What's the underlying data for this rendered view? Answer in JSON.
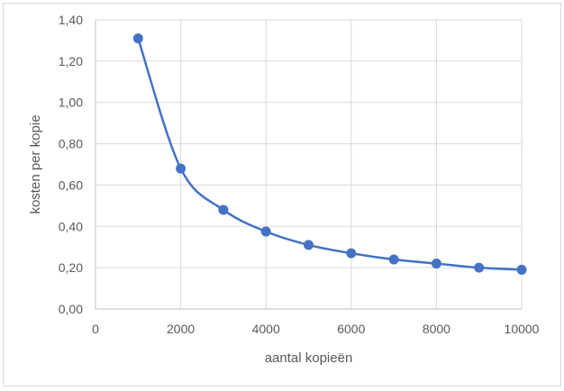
{
  "chart_data": {
    "type": "line",
    "title": "",
    "xlabel": "aantal kopieën",
    "ylabel": "kosten per kopie",
    "xlim": [
      0,
      10000
    ],
    "ylim": [
      0,
      1.4
    ],
    "x_ticks": [
      "0",
      "2000",
      "4000",
      "6000",
      "8000",
      "10000"
    ],
    "y_ticks": [
      "0,00",
      "0,20",
      "0,40",
      "0,60",
      "0,80",
      "1,00",
      "1,20",
      "1,40"
    ],
    "grid": true,
    "legend": "none",
    "smooth": true,
    "series": [
      {
        "color": "#4472c4",
        "x": [
          1000,
          2000,
          3000,
          4000,
          5000,
          6000,
          7000,
          8000,
          9000,
          10000
        ],
        "y": [
          1.31,
          0.68,
          0.48,
          0.375,
          0.31,
          0.27,
          0.24,
          0.22,
          0.2,
          0.19
        ]
      }
    ]
  },
  "colors": {
    "grid": "#d9d9d9",
    "axis": "#bfbfbf",
    "text": "#595959"
  }
}
